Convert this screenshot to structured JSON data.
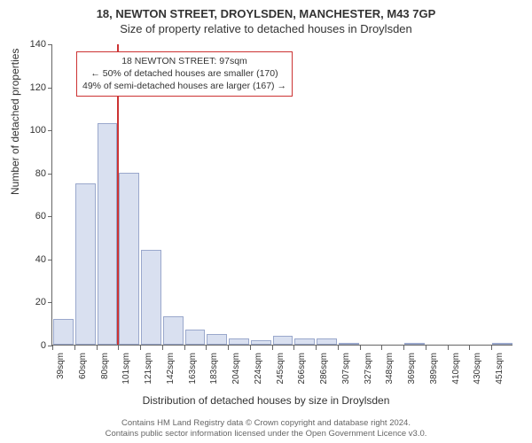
{
  "title_main": "18, NEWTON STREET, DROYLSDEN, MANCHESTER, M43 7GP",
  "title_sub": "Size of property relative to detached houses in Droylsden",
  "chart": {
    "type": "histogram",
    "ylabel": "Number of detached properties",
    "xlabel": "Distribution of detached houses by size in Droylsden",
    "ylim": [
      0,
      140
    ],
    "ytick_step": 20,
    "yticks": [
      0,
      20,
      40,
      60,
      80,
      100,
      120,
      140
    ],
    "xticks": [
      "39sqm",
      "60sqm",
      "80sqm",
      "101sqm",
      "121sqm",
      "142sqm",
      "163sqm",
      "183sqm",
      "204sqm",
      "224sqm",
      "245sqm",
      "266sqm",
      "286sqm",
      "307sqm",
      "327sqm",
      "348sqm",
      "369sqm",
      "389sqm",
      "410sqm",
      "430sqm",
      "451sqm"
    ],
    "bars": [
      12,
      75,
      103,
      80,
      44,
      13,
      7,
      5,
      3,
      2,
      4,
      3,
      3,
      1,
      0,
      0,
      1,
      0,
      0,
      0,
      1
    ],
    "bar_fill": "#d9e0f0",
    "bar_stroke": "#9aa8cc",
    "background_color": "#ffffff",
    "axis_color": "#666666",
    "marker": {
      "color": "#cc3333",
      "after_bin_index": 2
    },
    "info_box": {
      "border_color": "#cc3333",
      "line1": "18 NEWTON STREET: 97sqm",
      "line2": "← 50% of detached houses are smaller (170)",
      "line3": "49% of semi-detached houses are larger (167) →"
    }
  },
  "footer": {
    "line1": "Contains HM Land Registry data © Crown copyright and database right 2024.",
    "line2": "Contains public sector information licensed under the Open Government Licence v3.0."
  }
}
